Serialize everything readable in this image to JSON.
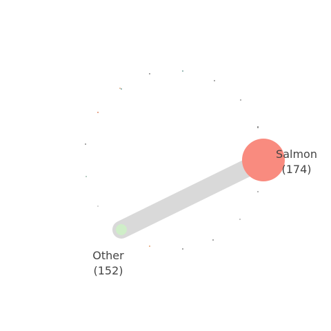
{
  "diagram": {
    "type": "chord-network",
    "nodes": [
      {
        "id": "salmon",
        "name": "Salmon",
        "count_label": "(174)",
        "color": "#f98b7f"
      },
      {
        "id": "other",
        "name": "Other",
        "count_label": "(152)",
        "color": "#cfeec8"
      }
    ],
    "edges": [
      {
        "from": "salmon",
        "to": "other",
        "color": "#d9d9d9"
      }
    ],
    "minor_nodes": [
      {
        "color": "#888888"
      },
      {
        "color": "#7aa6a0"
      },
      {
        "color": "#8c8c8c"
      },
      {
        "color": "#999999"
      },
      {
        "color": "#7d7d7d"
      },
      {
        "color": "#e0b08a"
      },
      {
        "color": "#e08a6a"
      },
      {
        "color": "#8a8a8a"
      },
      {
        "color": "#9fbfb0"
      },
      {
        "color": "#c8c8c8"
      },
      {
        "color": "#b0b0b0"
      },
      {
        "color": "#888888"
      },
      {
        "color": "#888888"
      },
      {
        "color": "#e6a070"
      },
      {
        "color": "#9a9a9a"
      },
      {
        "color": "#a0a0a0"
      },
      {
        "color": "#6aa0c0"
      },
      {
        "color": "#8a8a8a"
      },
      {
        "color": "#7aa6a0"
      }
    ]
  }
}
